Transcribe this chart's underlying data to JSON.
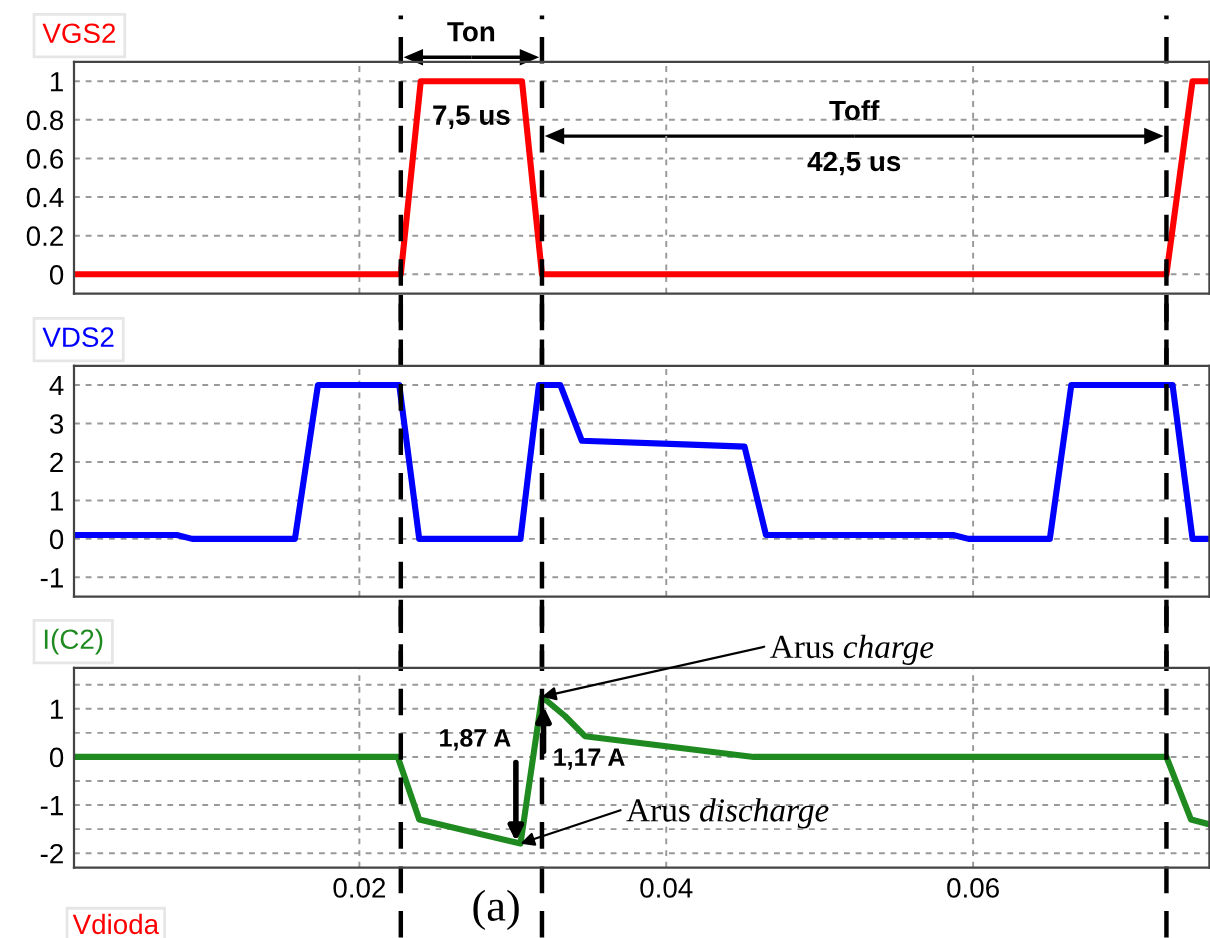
{
  "chart_data": [
    {
      "type": "line",
      "title": "VGS2",
      "x": [
        0.0014,
        0.0227,
        0.024,
        0.0306,
        0.0319,
        0.0726,
        0.0743,
        0.0754
      ],
      "series": [
        {
          "color": "#ff0000",
          "values": [
            0,
            0,
            1,
            1,
            0,
            0,
            1,
            1
          ]
        }
      ],
      "xlim": [
        0.0014,
        0.0754
      ],
      "xticks": [
        0.02,
        0.04,
        0.06
      ],
      "ylim": [
        -0.1,
        1.1
      ],
      "yticks": [
        0,
        0.2,
        0.4,
        0.6,
        0.8,
        1
      ],
      "grid": true,
      "tick_labels": "y",
      "line_style": "solid",
      "ref_lines": [
        {
          "axis": "x",
          "value": 0.0227,
          "color": "#000000",
          "line_style": "dashed"
        },
        {
          "axis": "x",
          "value": 0.0319,
          "color": "#000000",
          "line_style": "dashed"
        },
        {
          "axis": "x",
          "value": 0.0726,
          "color": "#000000",
          "line_style": "dashed"
        }
      ],
      "annotations": [
        "Ton",
        "7,5 us",
        "Toff",
        "42,5 us"
      ]
    },
    {
      "type": "line",
      "title": "VDS2",
      "x": [
        0.0014,
        0.0081,
        0.0091,
        0.0158,
        0.0173,
        0.0226,
        0.0239,
        0.0305,
        0.0317,
        0.0331,
        0.0345,
        0.0416,
        0.0451,
        0.0465,
        0.0587,
        0.0597,
        0.065,
        0.0664,
        0.073,
        0.0743,
        0.0754
      ],
      "series": [
        {
          "color": "#0000ff",
          "values": [
            0.1,
            0.1,
            0,
            0,
            4,
            4,
            0,
            0,
            4,
            4,
            2.55,
            2.45,
            2.4,
            0.1,
            0.1,
            0,
            0,
            4,
            4,
            0,
            0
          ]
        }
      ],
      "xlim": [
        0.0014,
        0.0754
      ],
      "xticks": [
        0.02,
        0.04,
        0.06
      ],
      "ylim": [
        -1.5,
        4.5
      ],
      "yticks": [
        -1,
        0,
        1,
        2,
        3,
        4
      ],
      "grid": true,
      "tick_labels": "y",
      "line_style": "solid",
      "ref_lines": [
        {
          "axis": "x",
          "value": 0.0227,
          "color": "#000000",
          "line_style": "dashed"
        },
        {
          "axis": "x",
          "value": 0.0319,
          "color": "#000000",
          "line_style": "dashed"
        },
        {
          "axis": "x",
          "value": 0.0726,
          "color": "#000000",
          "line_style": "dashed"
        }
      ]
    },
    {
      "type": "line",
      "title": "I(C2)",
      "x": [
        0.0014,
        0.0225,
        0.0239,
        0.0305,
        0.0319,
        0.0334,
        0.0347,
        0.0457,
        0.0726,
        0.0742,
        0.0754
      ],
      "series": [
        {
          "color": "#1f8a1f",
          "values": [
            0,
            0,
            -1.3,
            -1.8,
            1.25,
            0.85,
            0.43,
            0,
            0,
            -1.3,
            -1.4
          ]
        }
      ],
      "xlim": [
        0.0014,
        0.0754
      ],
      "xticks": [
        0.02,
        0.04,
        0.06
      ],
      "ylim": [
        -2.3,
        1.85
      ],
      "yticks": [
        -2,
        {
          "value": -1.5,
          "label": null
        },
        -1,
        {
          "value": -0.5,
          "label": null
        },
        0,
        {
          "value": 0.5,
          "label": null
        },
        1,
        {
          "value": 1.5,
          "label": null
        }
      ],
      "grid": true,
      "line_style": "solid",
      "ref_lines": [
        {
          "axis": "x",
          "value": 0.0227,
          "color": "#000000",
          "line_style": "dashed"
        },
        {
          "axis": "x",
          "value": 0.0319,
          "color": "#000000",
          "line_style": "dashed"
        },
        {
          "axis": "x",
          "value": 0.0726,
          "color": "#000000",
          "line_style": "dashed"
        }
      ],
      "annotations": [
        {
          "text": "Arus charge",
          "x": 0.0319,
          "y": 1.25
        },
        {
          "text": "Arus discharge",
          "x": 0.0305,
          "y": -1.8
        },
        {
          "text": "1,87 A",
          "x": 0.0302,
          "y": -1.87
        },
        {
          "text": "1,17 A",
          "x": 0.032,
          "y": 1.17
        },
        "(a)",
        "Vdioda"
      ]
    }
  ]
}
